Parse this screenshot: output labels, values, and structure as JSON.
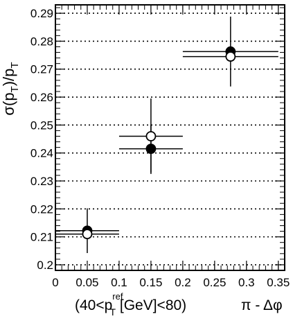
{
  "chart_data": {
    "type": "scatter",
    "ylabel_parts": {
      "sigma": "σ",
      "open": "(p",
      "sub1": "T",
      "mid": ")/p",
      "sub2": "T"
    },
    "xlabel": "π - Δφ",
    "annotation_parts": {
      "pre": "(40<p",
      "sup": "ref",
      "sub": "T",
      "post": " [GeV]<80)"
    },
    "xlim": [
      0,
      0.36
    ],
    "ylim": [
      0.198,
      0.293
    ],
    "x_ticks": [
      0,
      0.05,
      0.1,
      0.15,
      0.2,
      0.25,
      0.3,
      0.35
    ],
    "x_tick_labels": [
      "0",
      "0.05",
      "0.1",
      "0.15",
      "0.2",
      "0.25",
      "0.3",
      "0.35"
    ],
    "y_ticks": [
      0.2,
      0.21,
      0.22,
      0.23,
      0.24,
      0.25,
      0.26,
      0.27,
      0.28,
      0.29
    ],
    "y_tick_labels": [
      "0.2",
      "0.21",
      "0.22",
      "0.23",
      "0.24",
      "0.25",
      "0.26",
      "0.27",
      "0.28",
      "0.29"
    ],
    "grid": "horizontal-dotted",
    "series": [
      {
        "marker": "filled-circle",
        "points": [
          {
            "x": 0.05,
            "y": 0.2122,
            "xerr": 0.05,
            "yerr": 0.008
          },
          {
            "x": 0.15,
            "y": 0.2415,
            "xerr": 0.05,
            "yerr": 0.0085
          },
          {
            "x": 0.275,
            "y": 0.2763,
            "xerr": 0.075,
            "yerr": 0.0125
          }
        ]
      },
      {
        "marker": "open-circle",
        "points": [
          {
            "x": 0.05,
            "y": 0.211,
            "xerr": 0.05,
            "yerr": 0
          },
          {
            "x": 0.15,
            "y": 0.246,
            "xerr": 0.05,
            "yerr": 0.0135
          },
          {
            "x": 0.275,
            "y": 0.2745,
            "xerr": 0.075,
            "yerr": 0
          }
        ]
      }
    ]
  }
}
